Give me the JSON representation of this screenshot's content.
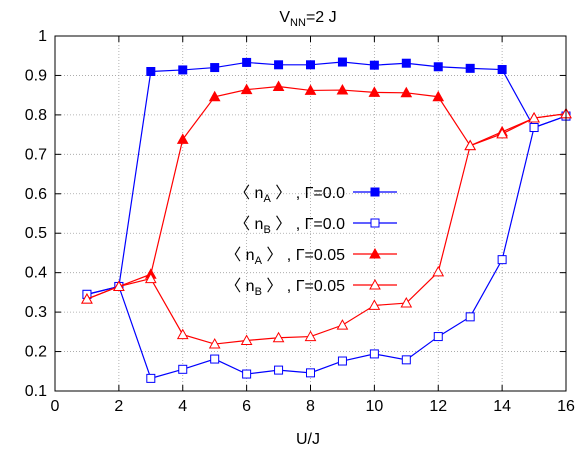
{
  "chart_data": {
    "type": "line",
    "title": "V",
    "title_subscript": "NN",
    "title_suffix": "=2 J",
    "xlabel": "U/J",
    "ylabel": "",
    "xlim": [
      0,
      16
    ],
    "ylim": [
      0.1,
      1.0
    ],
    "xticks": [
      0,
      2,
      4,
      6,
      8,
      10,
      12,
      14,
      16
    ],
    "yticks": [
      0.1,
      0.2,
      0.3,
      0.4,
      0.5,
      0.6,
      0.7,
      0.8,
      0.9,
      1.0
    ],
    "xtick_labels": [
      "0",
      "2",
      "4",
      "6",
      "8",
      "10",
      "12",
      "14",
      "16"
    ],
    "ytick_labels": [
      "0.1",
      "0.2",
      "0.3",
      "0.4",
      "0.5",
      "0.6",
      "0.7",
      "0.8",
      "0.9",
      "1"
    ],
    "grid": true,
    "legend_position": "center",
    "series": [
      {
        "label_open": "〈 n",
        "label_sub": "A",
        "label_close": " 〉 , Γ=0.0",
        "color": "#0000ff",
        "marker": "square-filled",
        "x": [
          1,
          2,
          3,
          4,
          5,
          6,
          7,
          8,
          9,
          10,
          11,
          12,
          13,
          14,
          15,
          16
        ],
        "y": [
          0.345,
          0.365,
          0.91,
          0.914,
          0.92,
          0.933,
          0.927,
          0.927,
          0.934,
          0.926,
          0.931,
          0.922,
          0.918,
          0.915,
          0.768,
          0.797
        ]
      },
      {
        "label_open": "〈 n",
        "label_sub": "B",
        "label_close": " 〉 , Γ=0.0",
        "color": "#0000ff",
        "marker": "square-open",
        "x": [
          1,
          2,
          3,
          4,
          5,
          6,
          7,
          8,
          9,
          10,
          11,
          12,
          13,
          14,
          15,
          16
        ],
        "y": [
          0.345,
          0.365,
          0.132,
          0.155,
          0.181,
          0.143,
          0.153,
          0.146,
          0.176,
          0.194,
          0.179,
          0.238,
          0.288,
          0.433,
          0.768,
          0.797
        ]
      },
      {
        "label_open": "〈 n",
        "label_sub": "A",
        "label_close": " 〉 , Γ=0.05",
        "color": "#ff0000",
        "marker": "triangle-filled",
        "x": [
          1,
          2,
          3,
          4,
          5,
          6,
          7,
          8,
          9,
          10,
          11,
          12,
          13,
          14,
          15,
          16
        ],
        "y": [
          0.333,
          0.365,
          0.396,
          0.738,
          0.846,
          0.864,
          0.872,
          0.862,
          0.863,
          0.857,
          0.856,
          0.846,
          0.722,
          0.757,
          0.792,
          0.803
        ]
      },
      {
        "label_open": "〈 n",
        "label_sub": "B",
        "label_close": " 〉 , Γ=0.05",
        "color": "#ff0000",
        "marker": "triangle-open",
        "x": [
          1,
          2,
          3,
          4,
          5,
          6,
          7,
          8,
          9,
          10,
          11,
          12,
          13,
          14,
          15,
          16
        ],
        "y": [
          0.333,
          0.365,
          0.385,
          0.243,
          0.219,
          0.228,
          0.235,
          0.238,
          0.267,
          0.317,
          0.323,
          0.402,
          0.722,
          0.752,
          0.792,
          0.803
        ]
      }
    ]
  }
}
